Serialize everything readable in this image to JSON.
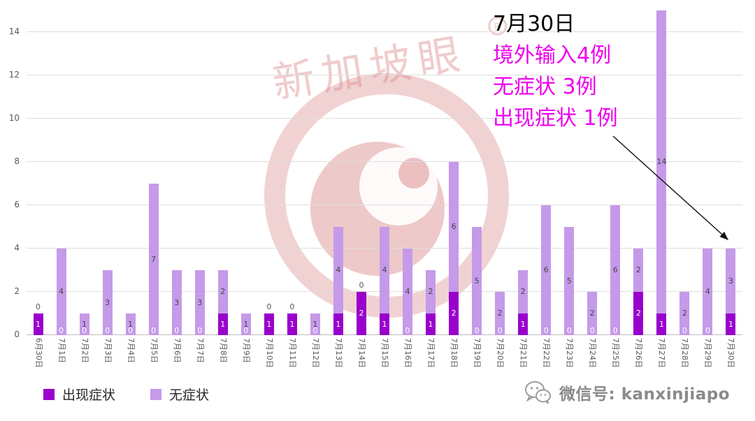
{
  "chart_data": {
    "type": "bar",
    "stacked": true,
    "categories": [
      "6月30日",
      "7月1日",
      "7月2日",
      "7月3日",
      "7月4日",
      "7月5日",
      "7月6日",
      "7月7日",
      "7月8日",
      "7月9日",
      "7月10日",
      "7月11日",
      "7月12日",
      "7月13日",
      "7月14日",
      "7月15日",
      "7月16日",
      "7月17日",
      "7月18日",
      "7月19日",
      "7月20日",
      "7月21日",
      "7月22日",
      "7月23日",
      "7月24日",
      "7月25日",
      "7月26日",
      "7月27日",
      "7月28日",
      "7月29日",
      "7月30日"
    ],
    "series": [
      {
        "name": "出现症状",
        "color": "#9900cc",
        "values": [
          1,
          0,
          0,
          0,
          0,
          0,
          0,
          0,
          1,
          0,
          1,
          1,
          0,
          1,
          2,
          1,
          0,
          1,
          2,
          0,
          0,
          1,
          0,
          0,
          0,
          0,
          2,
          1,
          0,
          0,
          1
        ]
      },
      {
        "name": "无症状",
        "color": "#c59ae9",
        "values": [
          0,
          4,
          1,
          3,
          1,
          7,
          3,
          3,
          2,
          1,
          0,
          0,
          1,
          4,
          0,
          4,
          4,
          2,
          6,
          5,
          2,
          2,
          6,
          5,
          2,
          6,
          2,
          14,
          2,
          4,
          3
        ]
      }
    ],
    "ylim": [
      0,
      15
    ],
    "yticks": [
      0,
      2,
      4,
      6,
      8,
      10,
      12,
      14
    ],
    "grid": true,
    "legend_position": "bottom-left",
    "data_labels": true
  },
  "annotation": {
    "title": "7月30日",
    "lines": [
      "境外输入4例",
      "无症状 3例",
      "出现症状 1例"
    ],
    "color": "#ee00ee"
  },
  "watermark": {
    "text": "新加坡眼",
    "mark": "R"
  },
  "footer": {
    "wechat_label": "微信号: kanxinjiapo"
  },
  "colors": {
    "grid": "#dedede",
    "axis": "#bdbdbd",
    "tick_text": "#595959",
    "label_in_light": "#444444",
    "label_in_dark": "#ffffff",
    "watermark_red": "#dc8f8f",
    "arrow": "#111111"
  }
}
